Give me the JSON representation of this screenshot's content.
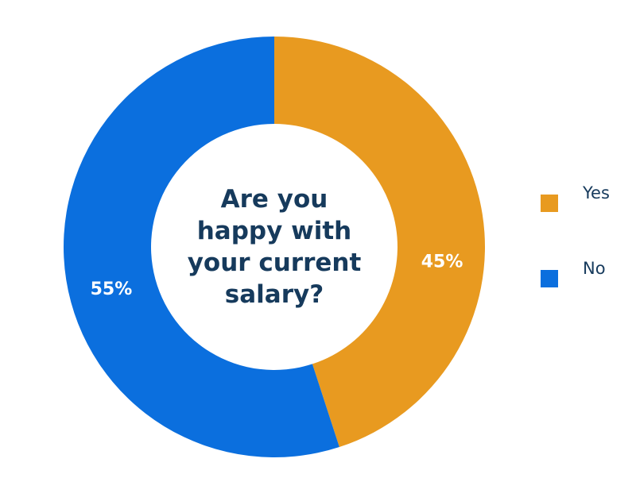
{
  "chart_data": {
    "type": "donut",
    "title": "Are you happy with your current salary?",
    "categories": [
      "Yes",
      "No"
    ],
    "values": [
      45,
      55
    ],
    "value_labels": [
      "45%",
      "55%"
    ],
    "colors": [
      "#e89a20",
      "#0b6fde"
    ],
    "legend": "right"
  }
}
